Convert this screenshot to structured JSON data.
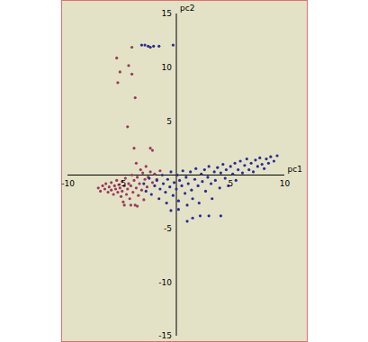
{
  "chart_data": {
    "type": "scatter",
    "x_label": "pc1",
    "y_label": "pc2",
    "xlim": [
      -10,
      10
    ],
    "ylim": [
      -15,
      15
    ],
    "xticks": [
      -10,
      -5,
      5,
      10
    ],
    "yticks": [
      -15,
      -10,
      -5,
      5,
      10,
      15
    ],
    "series": [
      {
        "color": "#9a3a5e",
        "values": [
          [
            -7.2,
            -1.2
          ],
          [
            -7,
            -1.5
          ],
          [
            -6.8,
            -1
          ],
          [
            -6.6,
            -1.3
          ],
          [
            -6.5,
            -0.8
          ],
          [
            -6.3,
            -1.6
          ],
          [
            -6.2,
            -1.1
          ],
          [
            -6,
            -1.4
          ],
          [
            -6,
            -0.7
          ],
          [
            -5.8,
            -1.8
          ],
          [
            -5.7,
            -1
          ],
          [
            -5.6,
            -1.3
          ],
          [
            -5.5,
            -0.5
          ],
          [
            -5.4,
            -1.6
          ],
          [
            -5.3,
            -0.9
          ],
          [
            -5.2,
            -1.2
          ],
          [
            -5.1,
            -2
          ],
          [
            -5,
            -0.6
          ],
          [
            -5,
            -1.5
          ],
          [
            -4.9,
            -2.5
          ],
          [
            -4.8,
            -1
          ],
          [
            -4.7,
            -0.3
          ],
          [
            -4.6,
            -1.8
          ],
          [
            -4.5,
            -1.3
          ],
          [
            -4.4,
            -0.8
          ],
          [
            -4.3,
            -2.2
          ],
          [
            -4.2,
            -1
          ],
          [
            -4.1,
            0
          ],
          [
            -4,
            -1.6
          ],
          [
            -3.9,
            -0.5
          ],
          [
            -3.8,
            -2.8
          ],
          [
            -3.7,
            -1.2
          ],
          [
            -3.6,
            -0.2
          ],
          [
            -3.5,
            -1.9
          ],
          [
            -3.4,
            -0.8
          ],
          [
            -3.3,
            0.5
          ],
          [
            -3.2,
            -1.4
          ],
          [
            -3.1,
            0.2
          ],
          [
            -3,
            -2.3
          ],
          [
            -2.9,
            -0.4
          ],
          [
            -2.8,
            0.8
          ],
          [
            -2.7,
            -1.1
          ],
          [
            -2.6,
            -0.2
          ],
          [
            -2.4,
            0.3
          ],
          [
            -2.2,
            -0.7
          ],
          [
            -2,
            0.1
          ],
          [
            -1.8,
            -0.4
          ],
          [
            -1.5,
            0.4
          ],
          [
            -4.8,
            -2.8
          ],
          [
            -4.2,
            -2.8
          ],
          [
            -3.6,
            -2.9
          ],
          [
            -5.5,
            10.9
          ],
          [
            -5.2,
            9.6
          ],
          [
            -5.4,
            8.6
          ],
          [
            -4.4,
            10.2
          ],
          [
            -4.1,
            9.4
          ],
          [
            -3.8,
            7.2
          ],
          [
            -4.5,
            4.5
          ],
          [
            -3.9,
            2.5
          ],
          [
            -2.4,
            2.5
          ],
          [
            -2.2,
            2.3
          ],
          [
            -4.1,
            11.9
          ],
          [
            -3.7,
            1.1
          ]
        ]
      },
      {
        "color": "#2a2a9a",
        "values": [
          [
            -3.2,
            12.1
          ],
          [
            -2.9,
            12.1
          ],
          [
            -2.6,
            12
          ],
          [
            -2.4,
            11.9
          ],
          [
            -2.1,
            12
          ],
          [
            -1.6,
            12
          ],
          [
            -0.3,
            12.1
          ],
          [
            -3,
            -0.8
          ],
          [
            -2.8,
            -1.5
          ],
          [
            -2.5,
            -0.3
          ],
          [
            -2.3,
            -1.8
          ],
          [
            -2,
            -1
          ],
          [
            -1.8,
            -0.5
          ],
          [
            -1.6,
            -2.2
          ],
          [
            -1.5,
            -1.3
          ],
          [
            -1.3,
            0
          ],
          [
            -1.2,
            -0.8
          ],
          [
            -1,
            -1.6
          ],
          [
            -0.9,
            -2.6
          ],
          [
            -0.8,
            -0.4
          ],
          [
            -0.6,
            -1.1
          ],
          [
            -0.5,
            0.3
          ],
          [
            -0.3,
            -1.9
          ],
          [
            -0.2,
            -0.7
          ],
          [
            0,
            -1.3
          ],
          [
            0.1,
            0
          ],
          [
            0.2,
            -2.4
          ],
          [
            0.3,
            -0.5
          ],
          [
            0.5,
            -1
          ],
          [
            0.6,
            0.4
          ],
          [
            0.8,
            -1.7
          ],
          [
            0.9,
            -0.2
          ],
          [
            1,
            -2.8
          ],
          [
            1.1,
            -0.8
          ],
          [
            1.3,
            0.3
          ],
          [
            1.4,
            -1.4
          ],
          [
            1.5,
            -2.2
          ],
          [
            1.7,
            -0.4
          ],
          [
            1.8,
            0.6
          ],
          [
            2,
            -1
          ],
          [
            2.1,
            -2.6
          ],
          [
            2.3,
            0.1
          ],
          [
            2.4,
            -0.6
          ],
          [
            2.6,
            0.5
          ],
          [
            2.7,
            -1.5
          ],
          [
            2.9,
            -0.2
          ],
          [
            3,
            0.8
          ],
          [
            3.2,
            -0.8
          ],
          [
            3.3,
            -2.2
          ],
          [
            3.5,
            0.3
          ],
          [
            3.6,
            -0.5
          ],
          [
            3.8,
            0.7
          ],
          [
            4,
            -1.2
          ],
          [
            4.1,
            0.2
          ],
          [
            4.3,
            1
          ],
          [
            4.5,
            -0.3
          ],
          [
            4.6,
            0.5
          ],
          [
            4.8,
            -1
          ],
          [
            5,
            0.8
          ],
          [
            5.2,
            0.1
          ],
          [
            5.4,
            1.1
          ],
          [
            5.5,
            -0.5
          ],
          [
            5.7,
            0.5
          ],
          [
            5.9,
            1.3
          ],
          [
            6.1,
            0.2
          ],
          [
            6.3,
            0.9
          ],
          [
            6.5,
            1.5
          ],
          [
            6.7,
            0.5
          ],
          [
            6.9,
            1.1
          ],
          [
            7.1,
            0.3
          ],
          [
            7.3,
            1.4
          ],
          [
            7.5,
            0.8
          ],
          [
            7.7,
            1.6
          ],
          [
            7.9,
            1
          ],
          [
            8.1,
            0.6
          ],
          [
            8.3,
            1.5
          ],
          [
            8.5,
            1.1
          ],
          [
            8.7,
            1.7
          ],
          [
            9,
            1.3
          ],
          [
            9.3,
            1.8
          ],
          [
            1,
            -4.3
          ],
          [
            1.5,
            -4
          ],
          [
            2.2,
            -3.8
          ],
          [
            3,
            -3.8
          ],
          [
            4.1,
            -3.8
          ],
          [
            0.2,
            -3.2
          ],
          [
            -0.5,
            -3.3
          ]
        ]
      }
    ]
  }
}
